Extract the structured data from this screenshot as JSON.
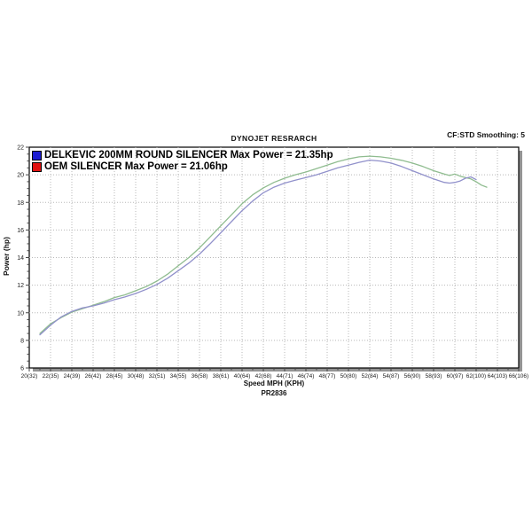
{
  "header": {
    "title": "DYNOJET RESRARCH",
    "correction": "CF:STD Smoothing: 5"
  },
  "chart_data": {
    "type": "line",
    "title": "DYNOJET RESRARCH",
    "xlabel": "Speed MPH (KPH)",
    "ylabel": "Power (hp)",
    "footer": "PR2836",
    "xlim": [
      20,
      66
    ],
    "ylim": [
      6,
      22
    ],
    "grid": "dotted major gridlines both axes",
    "legend_position": "top-left inside plot",
    "x_tick_values": [
      20,
      22,
      24,
      26,
      28,
      30,
      32,
      34,
      36,
      38,
      40,
      42,
      44,
      46,
      48,
      50,
      52,
      54,
      56,
      58,
      60,
      62,
      64,
      66
    ],
    "x_ticks": [
      "20(32)",
      "22(35)",
      "24(39)",
      "26(42)",
      "28(45)",
      "30(48)",
      "32(51)",
      "34(55)",
      "36(58)",
      "38(61)",
      "40(64)",
      "42(68)",
      "44(71)",
      "46(74)",
      "48(77)",
      "50(80)",
      "52(84)",
      "54(87)",
      "56(90)",
      "58(93)",
      "60(97)",
      "62(100)",
      "64(103)",
      "66(106)"
    ],
    "y_ticks": [
      6,
      8,
      10,
      12,
      14,
      16,
      18,
      20,
      22
    ],
    "colors": {
      "grid": "#b8b8b8",
      "frame": "#000000",
      "shadow": "#949494",
      "tick_text": "#222222"
    },
    "series": [
      {
        "name": "DELKEVIC 200MM ROUND SILENCER",
        "legend_label": "DELKEVIC 200MM ROUND SILENCER Max Power = 21.35hp",
        "max_power_hp": 21.35,
        "swatch_color": "#1d1dd2",
        "line_color": "#8fbc8f",
        "points": [
          [
            21,
            8.5
          ],
          [
            22,
            9.2
          ],
          [
            23,
            9.65
          ],
          [
            24,
            10.05
          ],
          [
            25,
            10.3
          ],
          [
            26,
            10.55
          ],
          [
            27,
            10.8
          ],
          [
            28,
            11.1
          ],
          [
            29,
            11.3
          ],
          [
            30,
            11.6
          ],
          [
            31,
            11.9
          ],
          [
            32,
            12.3
          ],
          [
            33,
            12.8
          ],
          [
            34,
            13.4
          ],
          [
            35,
            14.0
          ],
          [
            36,
            14.7
          ],
          [
            37,
            15.5
          ],
          [
            38,
            16.3
          ],
          [
            39,
            17.1
          ],
          [
            40,
            17.9
          ],
          [
            41,
            18.55
          ],
          [
            42,
            19.05
          ],
          [
            43,
            19.45
          ],
          [
            44,
            19.75
          ],
          [
            45,
            20.0
          ],
          [
            46,
            20.2
          ],
          [
            47,
            20.45
          ],
          [
            48,
            20.7
          ],
          [
            49,
            20.95
          ],
          [
            50,
            21.15
          ],
          [
            51,
            21.3
          ],
          [
            52,
            21.35
          ],
          [
            53,
            21.3
          ],
          [
            54,
            21.2
          ],
          [
            55,
            21.05
          ],
          [
            56,
            20.85
          ],
          [
            57,
            20.6
          ],
          [
            58,
            20.3
          ],
          [
            59,
            20.05
          ],
          [
            59.5,
            19.95
          ],
          [
            60,
            20.05
          ],
          [
            60.5,
            19.9
          ],
          [
            61,
            19.8
          ],
          [
            61.5,
            19.7
          ],
          [
            62,
            19.5
          ],
          [
            62.5,
            19.25
          ],
          [
            63,
            19.1
          ]
        ]
      },
      {
        "name": "OEM SILENCER",
        "legend_label": "OEM SILENCER Max Power = 21.06hp",
        "max_power_hp": 21.06,
        "swatch_color": "#e01212",
        "line_color": "#9191cb",
        "points": [
          [
            21,
            8.4
          ],
          [
            22,
            9.1
          ],
          [
            23,
            9.7
          ],
          [
            24,
            10.1
          ],
          [
            25,
            10.35
          ],
          [
            26,
            10.5
          ],
          [
            27,
            10.7
          ],
          [
            28,
            10.95
          ],
          [
            29,
            11.15
          ],
          [
            30,
            11.4
          ],
          [
            31,
            11.7
          ],
          [
            32,
            12.05
          ],
          [
            33,
            12.5
          ],
          [
            34,
            13.05
          ],
          [
            35,
            13.6
          ],
          [
            36,
            14.25
          ],
          [
            37,
            15.0
          ],
          [
            38,
            15.8
          ],
          [
            39,
            16.6
          ],
          [
            40,
            17.4
          ],
          [
            41,
            18.1
          ],
          [
            42,
            18.7
          ],
          [
            43,
            19.1
          ],
          [
            44,
            19.4
          ],
          [
            45,
            19.6
          ],
          [
            46,
            19.8
          ],
          [
            47,
            20.0
          ],
          [
            48,
            20.25
          ],
          [
            49,
            20.5
          ],
          [
            50,
            20.7
          ],
          [
            51,
            20.9
          ],
          [
            52,
            21.06
          ],
          [
            53,
            21.0
          ],
          [
            54,
            20.85
          ],
          [
            55,
            20.6
          ],
          [
            56,
            20.3
          ],
          [
            57,
            20.0
          ],
          [
            58,
            19.7
          ],
          [
            59,
            19.45
          ],
          [
            59.5,
            19.4
          ],
          [
            60,
            19.45
          ],
          [
            60.5,
            19.55
          ],
          [
            61,
            19.75
          ],
          [
            61.5,
            19.85
          ],
          [
            62,
            19.65
          ]
        ]
      }
    ]
  }
}
